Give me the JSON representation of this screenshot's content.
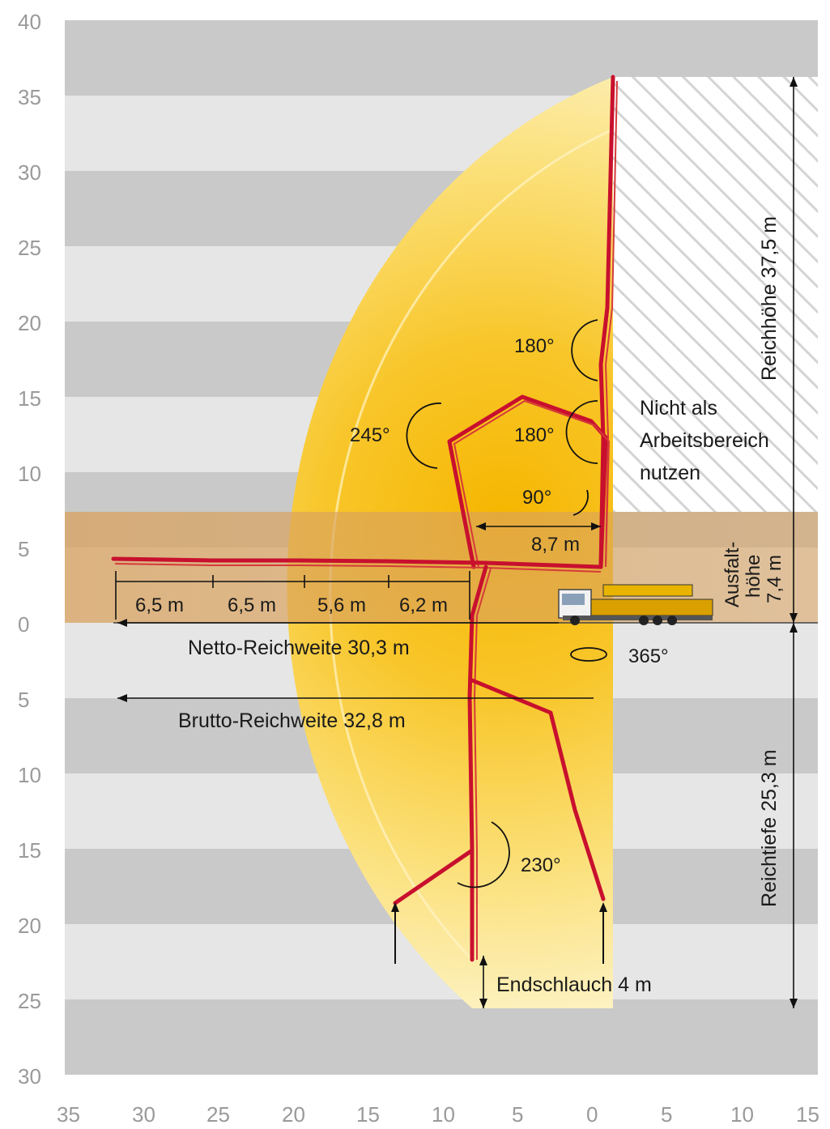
{
  "axes": {
    "y_labels": [
      "40",
      "35",
      "30",
      "25",
      "20",
      "15",
      "10",
      "5",
      "0",
      "5",
      "10",
      "15",
      "20",
      "25",
      "30"
    ],
    "x_labels": [
      "35",
      "30",
      "25",
      "20",
      "15",
      "10",
      "5",
      "0",
      "5",
      "10",
      "15"
    ]
  },
  "angles": {
    "a180_upper": "180°",
    "a180_lower": "180°",
    "a245": "245°",
    "a90": "90°",
    "a365": "365°",
    "a230": "230°"
  },
  "dimensions": {
    "seg1": "6,5 m",
    "seg2": "6,5 m",
    "seg3": "5,6 m",
    "seg4": "6,2 m",
    "d87": "8,7 m",
    "netto": "Netto-Reichweite 30,3 m",
    "brutto": "Brutto-Reichweite 32,8 m",
    "endschlauch": "Endschlauch 4 m",
    "reichhoehe": "Reichhöhe 37,5 m",
    "reichtiefe": "Reichtiefe 25,3 m",
    "ausfalt_line1": "Ausfalt-",
    "ausfalt_line2": "höhe",
    "ausfalt_line3": "7,4 m"
  },
  "notice": {
    "line1": "Nicht als",
    "line2": "Arbeitsbereich",
    "line3": "nutzen"
  },
  "colors": {
    "boom": "#c8102e",
    "band_dark": "#c9c9c9",
    "band_light": "#e6e6e6",
    "reach_yellow": "#f7c21a",
    "ausfalt_band": "#e9b987"
  }
}
